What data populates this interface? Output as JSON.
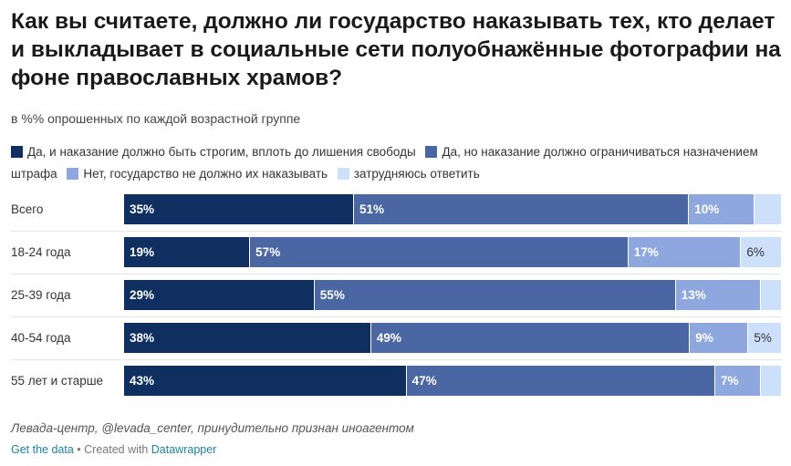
{
  "title": "Как вы считаете, должно ли государство наказывать тех, кто делает и выкладывает в социальные сети полуобнажённые фотографии на фоне православных храмов?",
  "subtitle": "в %% опрошенных по каждой возрастной группе",
  "legend": [
    {
      "label": "Да, и наказание должно быть строгим, вплоть до лишения свободы",
      "color": "#0e2f5f"
    },
    {
      "label": "Да, но наказание должно ограничиваться назначением штрафа",
      "color": "#4a67a3"
    },
    {
      "label": "Нет, государство не должно их наказывать",
      "color": "#8ea8df"
    },
    {
      "label": "затрудняюсь ответить",
      "color": "#cde0fb"
    }
  ],
  "chart_data": {
    "type": "bar",
    "orientation": "horizontal-stacked",
    "categories": [
      "Всего",
      "18-24 года",
      "25-39 года",
      "40-54 года",
      "55 лет и старше"
    ],
    "series": [
      {
        "name": "Да, и наказание должно быть строгим, вплоть до лишения свободы",
        "values": [
          35,
          19,
          29,
          38,
          43
        ],
        "labels": [
          "35%",
          "19%",
          "29%",
          "38%",
          "43%"
        ]
      },
      {
        "name": "Да, но наказание должно ограничиваться назначением штрафа",
        "values": [
          51,
          57,
          55,
          49,
          47
        ],
        "labels": [
          "51%",
          "57%",
          "55%",
          "49%",
          "47%"
        ]
      },
      {
        "name": "Нет, государство не должно их наказывать",
        "values": [
          10,
          17,
          13,
          9,
          7
        ],
        "labels": [
          "10%",
          "17%",
          "13%",
          "9%",
          "7%"
        ]
      },
      {
        "name": "затрудняюсь ответить",
        "values": [
          4,
          6,
          3,
          5,
          3
        ],
        "labels": [
          "",
          "6%",
          "",
          "5%",
          ""
        ]
      }
    ],
    "xlim": [
      0,
      100
    ]
  },
  "source": "Левада-центр, @levada_center, принудительно признан иноагентом",
  "footer": {
    "get_data": "Get the data",
    "separator": " • Created with ",
    "tool": "Datawrapper"
  }
}
